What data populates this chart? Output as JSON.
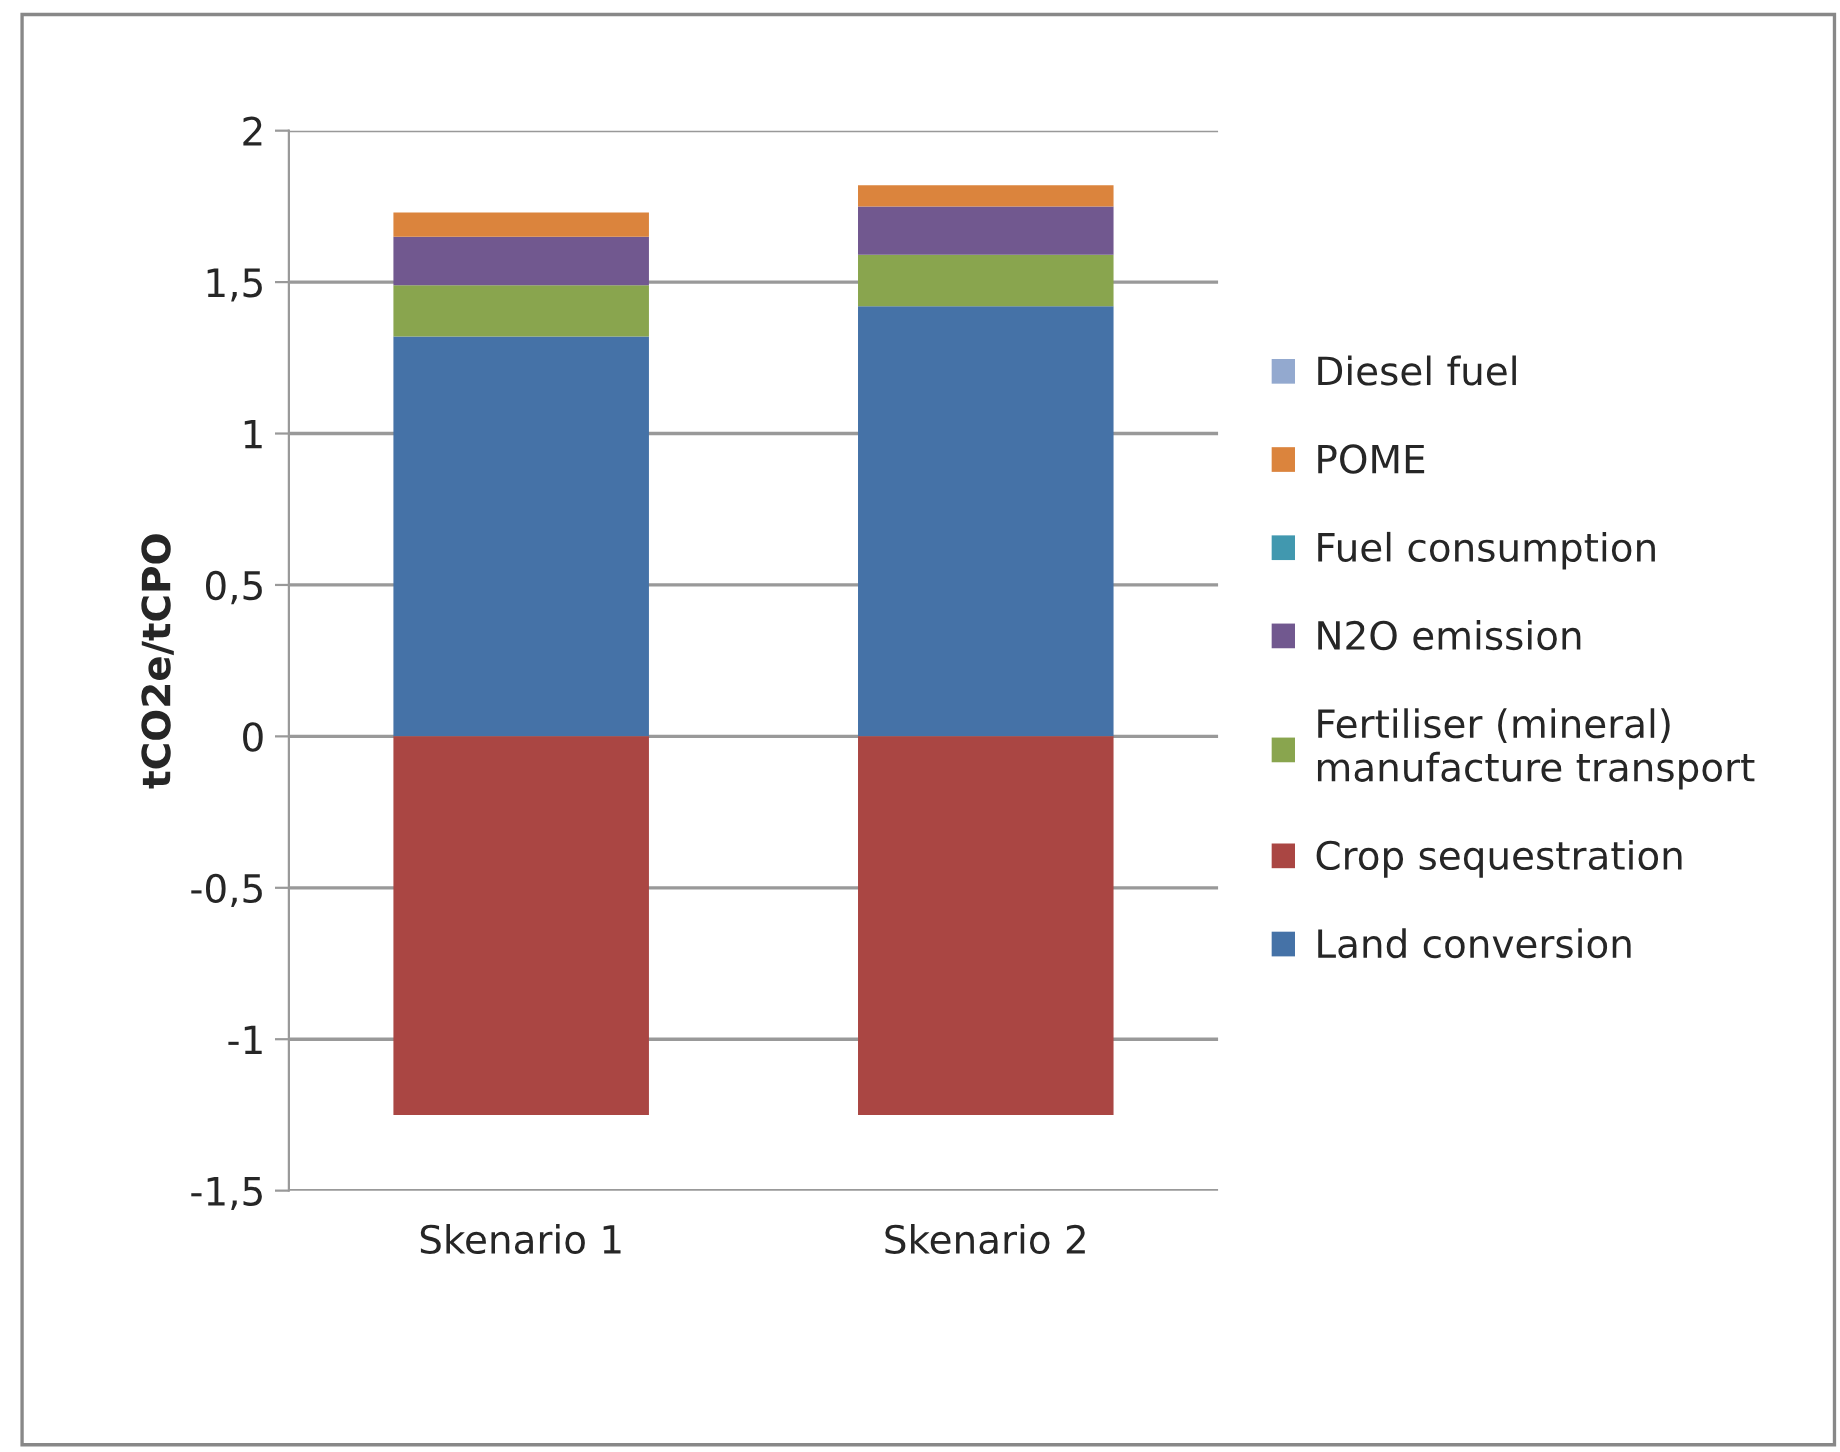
{
  "chart_data": {
    "type": "bar",
    "stacked": true,
    "ylabel": "tCO2e/tCPO",
    "categories": [
      "Skenario 1",
      "Skenario 2"
    ],
    "series": [
      {
        "name": "Land conversion",
        "color": "#4572a7",
        "values": [
          1.32,
          1.42
        ]
      },
      {
        "name": "Crop sequestration",
        "color": "#aa4643",
        "values": [
          -1.25,
          -1.25
        ]
      },
      {
        "name": "Fertiliser (mineral)\nmanufacture transport",
        "color": "#89a54e",
        "values": [
          0.17,
          0.17
        ]
      },
      {
        "name": "N2O emission",
        "color": "#71588f",
        "values": [
          0.16,
          0.16
        ]
      },
      {
        "name": "Fuel consumption",
        "color": "#4198af",
        "values": [
          0,
          0
        ]
      },
      {
        "name": "POME",
        "color": "#db843d",
        "values": [
          0.08,
          0.07
        ]
      },
      {
        "name": "Diesel fuel",
        "color": "#93a9cf",
        "values": [
          0,
          0
        ]
      }
    ],
    "ylim": [
      -1.5,
      2
    ],
    "yticks": [
      {
        "value": -1.5,
        "label": "-1,5"
      },
      {
        "value": -1,
        "label": "-1"
      },
      {
        "value": -0.5,
        "label": "-0,5"
      },
      0,
      {
        "value": 0.5,
        "label": "0,5"
      },
      1,
      {
        "value": 1.5,
        "label": "1,5"
      },
      2
    ],
    "grid": "y",
    "legend": "right"
  }
}
